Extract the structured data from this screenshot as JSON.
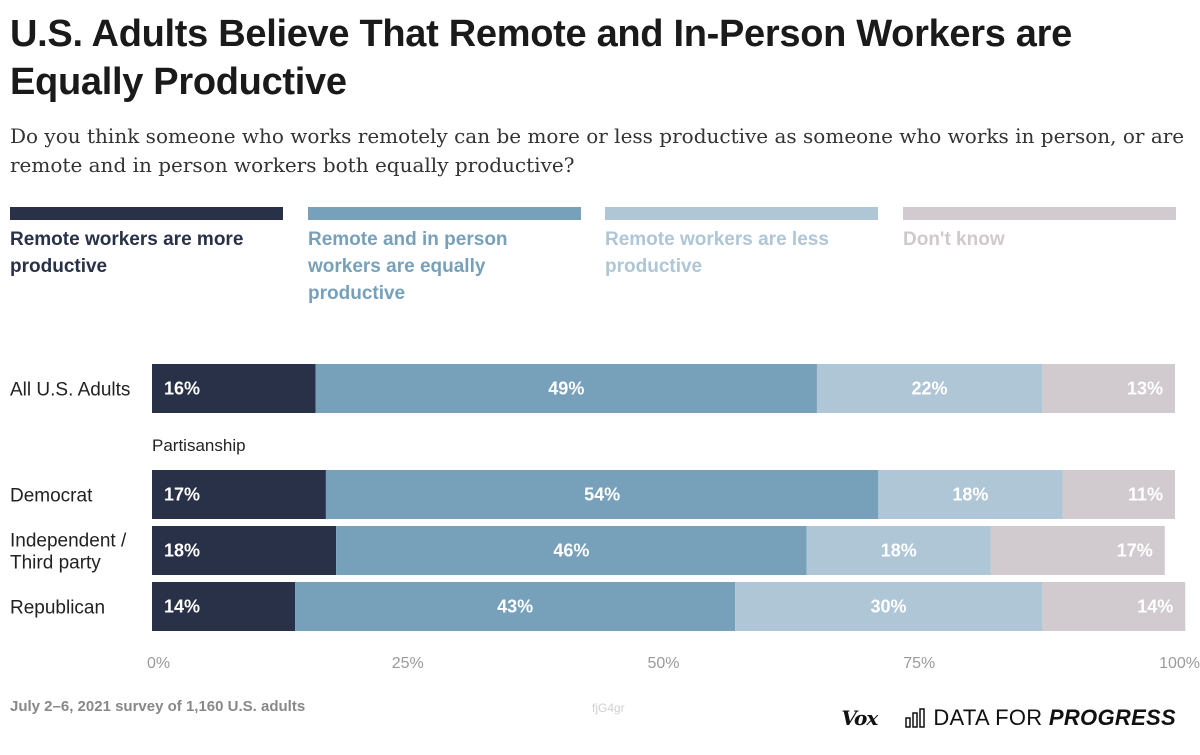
{
  "title": "U.S. Adults Believe That Remote and In-Person Workers are Equally Productive",
  "subtitle": "Do you think someone who works remotely can be more or less productive as someone who works in person, or are remote and in person workers both equally productive?",
  "chart_data": {
    "type": "bar",
    "orientation": "horizontal",
    "stacked": true,
    "percent": true,
    "categories": [
      "All U.S. Adults",
      "Democrat",
      "Independent / Third party",
      "Republican"
    ],
    "category_lines": [
      [
        "All U.S. Adults"
      ],
      [
        "Democrat"
      ],
      [
        "Independent /",
        "Third party"
      ],
      [
        "Republican"
      ]
    ],
    "group_label": "Partisanship",
    "series": [
      {
        "name": "Remote workers are more productive",
        "color": "#283147",
        "label_color": "#ffffff",
        "label_align": "left",
        "values": [
          16,
          17,
          18,
          14
        ]
      },
      {
        "name": "Remote and in person workers are equally productive",
        "color": "#77a1bb",
        "label_color": "#ffffff",
        "label_align": "center",
        "values": [
          49,
          54,
          46,
          43
        ]
      },
      {
        "name": "Remote workers are less productive",
        "color": "#aec6d5",
        "label_color": "#ffffff",
        "label_align": "center",
        "values": [
          22,
          18,
          18,
          30
        ]
      },
      {
        "name": "Don't know",
        "color": "#d1cbcf",
        "label_color": "#ffffff",
        "label_align": "right",
        "values": [
          13,
          11,
          17,
          14
        ]
      }
    ],
    "legend_text_colors": [
      "#283147",
      "#77a1bb",
      "#aec6d5",
      "#cfc9cd"
    ],
    "xlim": [
      0,
      100
    ],
    "xticks": [
      0,
      25,
      50,
      75,
      100
    ],
    "xtick_labels": [
      "0%",
      "25%",
      "50%",
      "75%",
      "100%"
    ],
    "grid": false,
    "legend_position": "top"
  },
  "footer": {
    "note": "July 2–6, 2021 survey of 1,160 U.S. adults",
    "chart_id": "fjG4gr",
    "brand_vox": "Vox",
    "brand_dfp_plain": "DATA FOR ",
    "brand_dfp_bold": "PROGRESS",
    "brand_icon": "bar-chart-icon"
  }
}
